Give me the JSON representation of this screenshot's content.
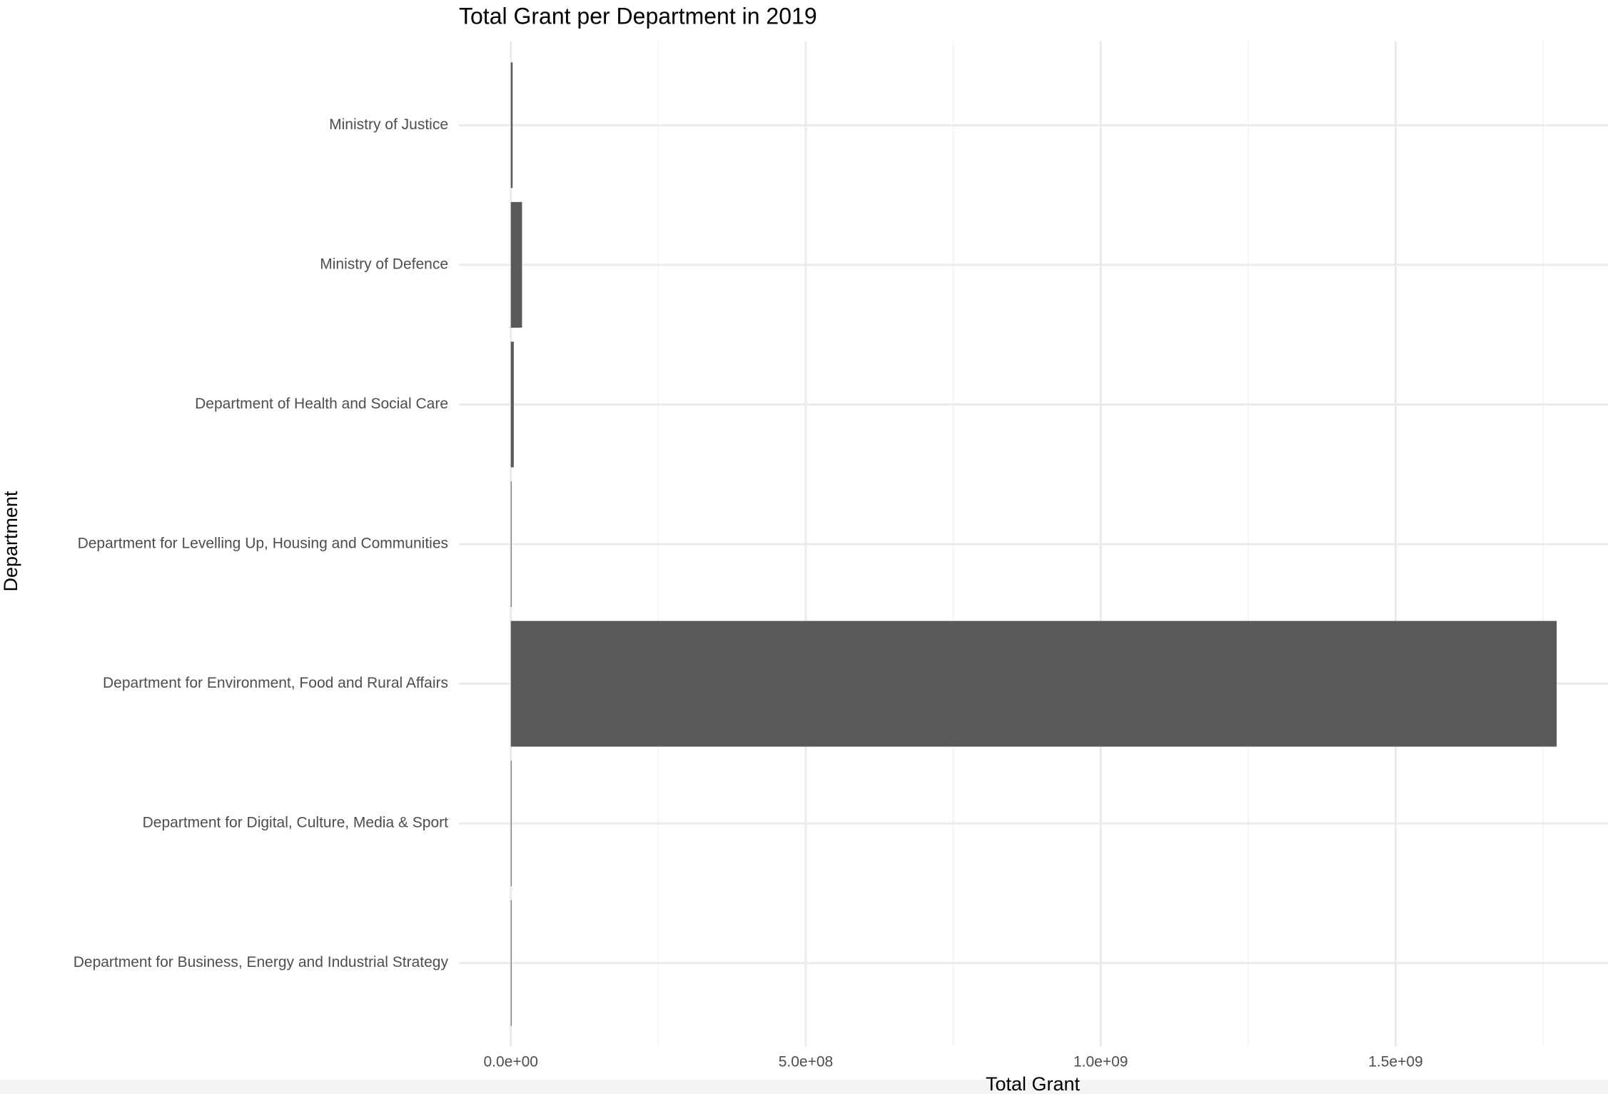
{
  "chart_data": {
    "type": "barh",
    "title": "Total Grant per Department in 2019",
    "x_label": "Total Grant",
    "y_label": "Department",
    "categories": [
      "Department for Business, Energy and Industrial Strategy",
      "Department for Digital, Culture, Media & Sport",
      "Department for Environment, Food and Rural Affairs",
      "Department for Levelling Up, Housing and Communities",
      "Department of Health and Social Care",
      "Ministry of Defence",
      "Ministry of Justice"
    ],
    "values": [
      200000,
      300000,
      1773000000,
      1000000,
      5000000,
      19000000,
      3000000
    ],
    "color": "#595959",
    "xlim": [
      -88000000,
      1860000000
    ],
    "xticks": [
      {
        "value": 0,
        "label": "0.0e+00"
      },
      {
        "value": 500000000,
        "label": "5.0e+08"
      },
      {
        "value": 1000000000,
        "label": "1.0e+09"
      },
      {
        "value": 1500000000,
        "label": "1.5e+09"
      }
    ],
    "x_minor_ticks": [
      250000000,
      750000000,
      1250000000,
      1750000000
    ],
    "grid": true
  }
}
